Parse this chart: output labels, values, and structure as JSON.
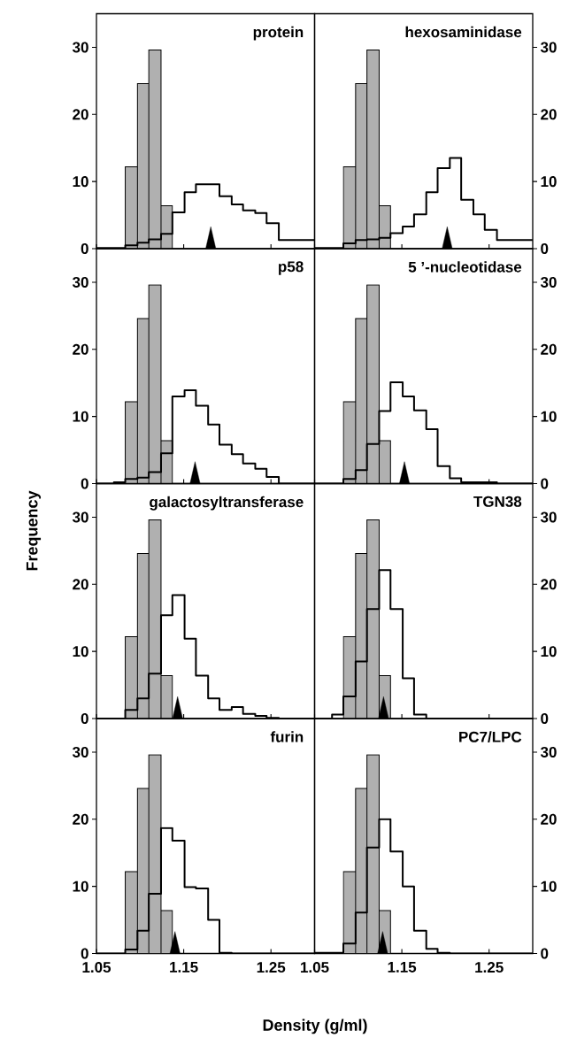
{
  "chart_data": [
    {
      "type": "histogram",
      "title": "protein",
      "xlim": [
        1.05,
        1.3
      ],
      "xticks": [
        1.05,
        1.15,
        1.25
      ],
      "ylim": [
        0,
        35
      ],
      "yticks": [
        0,
        10,
        20,
        30
      ],
      "tick_labels": "y",
      "series": [
        {
          "type": "histogram",
          "bins": [
            1.083,
            1.097,
            1.11,
            1.124,
            1.137
          ],
          "values": [
            12.2,
            24.6,
            29.6,
            6.4
          ],
          "color": "#b0b0b0"
        },
        {
          "type": "step",
          "x": [
            1.05,
            1.083,
            1.097,
            1.11,
            1.124,
            1.137,
            1.151,
            1.164,
            1.178,
            1.191,
            1.205,
            1.218,
            1.232,
            1.245,
            1.259,
            1.3
          ],
          "values": [
            0.1,
            0.5,
            0.9,
            1.4,
            2.2,
            5.4,
            8.4,
            9.6,
            9.6,
            7.8,
            6.6,
            5.7,
            5.3,
            3.8,
            1.3,
            1.3
          ],
          "color": "#000000"
        },
        {
          "type": "scatter",
          "marker": "triangle",
          "x": [
            1.181
          ],
          "values": [
            1.1
          ],
          "color": "#000000"
        }
      ]
    },
    {
      "type": "histogram",
      "title": "hexosaminidase",
      "xlim": [
        1.05,
        1.3
      ],
      "xticks": [
        1.05,
        1.15,
        1.25
      ],
      "ylim": [
        0,
        35
      ],
      "yticks": [
        0,
        10,
        20,
        30
      ],
      "tick_labels": "y",
      "series": [
        {
          "type": "histogram",
          "bins": [
            1.083,
            1.097,
            1.11,
            1.124,
            1.137
          ],
          "values": [
            12.2,
            24.6,
            29.6,
            6.4
          ],
          "color": "#b0b0b0"
        },
        {
          "type": "step",
          "x": [
            1.05,
            1.083,
            1.097,
            1.11,
            1.124,
            1.137,
            1.151,
            1.164,
            1.178,
            1.191,
            1.205,
            1.218,
            1.232,
            1.245,
            1.259,
            1.3
          ],
          "values": [
            0.1,
            0.8,
            1.3,
            1.4,
            1.6,
            2.3,
            3.3,
            5.1,
            8.4,
            12.0,
            13.5,
            7.3,
            5.1,
            2.8,
            1.3,
            1.3
          ],
          "color": "#000000"
        },
        {
          "type": "scatter",
          "marker": "triangle",
          "x": [
            1.202
          ],
          "values": [
            1.1
          ],
          "color": "#000000"
        }
      ]
    },
    {
      "type": "histogram",
      "title": "p58",
      "xlim": [
        1.05,
        1.3
      ],
      "xticks": [
        1.05,
        1.15,
        1.25
      ],
      "ylim": [
        0,
        35
      ],
      "yticks": [
        0,
        10,
        20,
        30
      ],
      "tick_labels": "y",
      "series": [
        {
          "type": "histogram",
          "bins": [
            1.083,
            1.097,
            1.11,
            1.124,
            1.137
          ],
          "values": [
            12.2,
            24.6,
            29.6,
            6.4
          ],
          "color": "#b0b0b0"
        },
        {
          "type": "step",
          "x": [
            1.05,
            1.07,
            1.083,
            1.097,
            1.11,
            1.124,
            1.137,
            1.151,
            1.164,
            1.178,
            1.191,
            1.205,
            1.218,
            1.232,
            1.245,
            1.259,
            1.3
          ],
          "values": [
            0,
            0.2,
            0.7,
            0.9,
            1.7,
            4.5,
            13.0,
            13.9,
            11.6,
            8.8,
            5.8,
            4.4,
            3.0,
            2.2,
            1.0,
            0,
            0
          ],
          "color": "#000000"
        },
        {
          "type": "scatter",
          "marker": "triangle",
          "x": [
            1.163
          ],
          "values": [
            1.1
          ],
          "color": "#000000"
        }
      ]
    },
    {
      "type": "histogram",
      "title": "5 ’-nucleotidase",
      "xlim": [
        1.05,
        1.3
      ],
      "xticks": [
        1.05,
        1.15,
        1.25
      ],
      "ylim": [
        0,
        35
      ],
      "yticks": [
        0,
        10,
        20,
        30
      ],
      "tick_labels": "y",
      "series": [
        {
          "type": "histogram",
          "bins": [
            1.083,
            1.097,
            1.11,
            1.124,
            1.137
          ],
          "values": [
            12.2,
            24.6,
            29.6,
            6.4
          ],
          "color": "#b0b0b0"
        },
        {
          "type": "step",
          "x": [
            1.05,
            1.083,
            1.097,
            1.11,
            1.124,
            1.137,
            1.151,
            1.164,
            1.178,
            1.191,
            1.205,
            1.218,
            1.259,
            1.3
          ],
          "values": [
            0,
            0.7,
            2.0,
            5.9,
            10.8,
            15.1,
            13.0,
            10.9,
            8.1,
            2.6,
            0.8,
            0.2,
            0,
            0
          ],
          "color": "#000000"
        },
        {
          "type": "scatter",
          "marker": "triangle",
          "x": [
            1.153
          ],
          "values": [
            1.1
          ],
          "color": "#000000"
        }
      ]
    },
    {
      "type": "histogram",
      "title": "galactosyltransferase",
      "ylabel": "Frequency",
      "xlim": [
        1.05,
        1.3
      ],
      "xticks": [
        1.05,
        1.15,
        1.25
      ],
      "ylim": [
        0,
        35
      ],
      "yticks": [
        0,
        10,
        20,
        30
      ],
      "tick_labels": "y",
      "series": [
        {
          "type": "histogram",
          "bins": [
            1.083,
            1.097,
            1.11,
            1.124,
            1.137
          ],
          "values": [
            12.2,
            24.6,
            29.6,
            6.4
          ],
          "color": "#b0b0b0"
        },
        {
          "type": "step",
          "x": [
            1.05,
            1.083,
            1.097,
            1.11,
            1.124,
            1.137,
            1.151,
            1.164,
            1.178,
            1.191,
            1.205,
            1.218,
            1.232,
            1.245,
            1.259,
            1.3
          ],
          "values": [
            0,
            1.3,
            3.0,
            6.7,
            15.4,
            18.4,
            11.9,
            6.4,
            3.0,
            1.3,
            1.7,
            0.7,
            0.4,
            0.1,
            0,
            0
          ],
          "color": "#000000"
        },
        {
          "type": "scatter",
          "marker": "triangle",
          "x": [
            1.143
          ],
          "values": [
            1.1
          ],
          "color": "#000000"
        }
      ]
    },
    {
      "type": "histogram",
      "title": "TGN38",
      "xlim": [
        1.05,
        1.3
      ],
      "xticks": [
        1.05,
        1.15,
        1.25
      ],
      "ylim": [
        0,
        35
      ],
      "yticks": [
        0,
        10,
        20,
        30
      ],
      "tick_labels": "y",
      "series": [
        {
          "type": "histogram",
          "bins": [
            1.083,
            1.097,
            1.11,
            1.124,
            1.137
          ],
          "values": [
            12.2,
            24.6,
            29.6,
            6.4
          ],
          "color": "#b0b0b0"
        },
        {
          "type": "step",
          "x": [
            1.05,
            1.07,
            1.083,
            1.097,
            1.11,
            1.124,
            1.137,
            1.151,
            1.164,
            1.178,
            1.3
          ],
          "values": [
            0,
            0.6,
            3.3,
            8.5,
            16.3,
            22.1,
            16.3,
            6.0,
            0.6,
            0,
            0
          ],
          "color": "#000000"
        },
        {
          "type": "scatter",
          "marker": "triangle",
          "x": [
            1.129
          ],
          "values": [
            1.1
          ],
          "color": "#000000"
        }
      ]
    },
    {
      "type": "histogram",
      "title": "furin",
      "xlabel": "Density (g/ml)",
      "xlim": [
        1.05,
        1.3
      ],
      "xticks": [
        1.05,
        1.15,
        1.25
      ],
      "ylim": [
        0,
        35
      ],
      "yticks": [
        0,
        10,
        20,
        30
      ],
      "series": [
        {
          "type": "histogram",
          "bins": [
            1.083,
            1.097,
            1.11,
            1.124,
            1.137
          ],
          "values": [
            12.2,
            24.6,
            29.6,
            6.4
          ],
          "color": "#b0b0b0"
        },
        {
          "type": "step",
          "x": [
            1.05,
            1.083,
            1.097,
            1.11,
            1.124,
            1.137,
            1.151,
            1.164,
            1.178,
            1.191,
            1.205,
            1.3
          ],
          "values": [
            0,
            0.6,
            3.4,
            8.9,
            18.7,
            16.8,
            9.9,
            9.7,
            5.0,
            0.1,
            0,
            0
          ],
          "color": "#000000"
        },
        {
          "type": "scatter",
          "marker": "triangle",
          "x": [
            1.14
          ],
          "values": [
            1.1
          ],
          "color": "#000000"
        }
      ]
    },
    {
      "type": "histogram",
      "title": "PC7/LPC",
      "xlim": [
        1.05,
        1.3
      ],
      "xticks": [
        1.05,
        1.15,
        1.25
      ],
      "ylim": [
        0,
        35
      ],
      "yticks": [
        0,
        10,
        20,
        30
      ],
      "series": [
        {
          "type": "histogram",
          "bins": [
            1.083,
            1.097,
            1.11,
            1.124,
            1.137
          ],
          "values": [
            12.2,
            24.6,
            29.6,
            6.4
          ],
          "color": "#b0b0b0"
        },
        {
          "type": "step",
          "x": [
            1.05,
            1.083,
            1.097,
            1.11,
            1.124,
            1.137,
            1.151,
            1.164,
            1.178,
            1.191,
            1.205,
            1.3
          ],
          "values": [
            0.1,
            1.5,
            6.1,
            15.8,
            20.0,
            15.2,
            10.0,
            3.4,
            0.7,
            0.1,
            0,
            0
          ],
          "color": "#000000"
        },
        {
          "type": "scatter",
          "marker": "triangle",
          "x": [
            1.128
          ],
          "values": [
            1.1
          ],
          "color": "#000000"
        }
      ]
    }
  ]
}
